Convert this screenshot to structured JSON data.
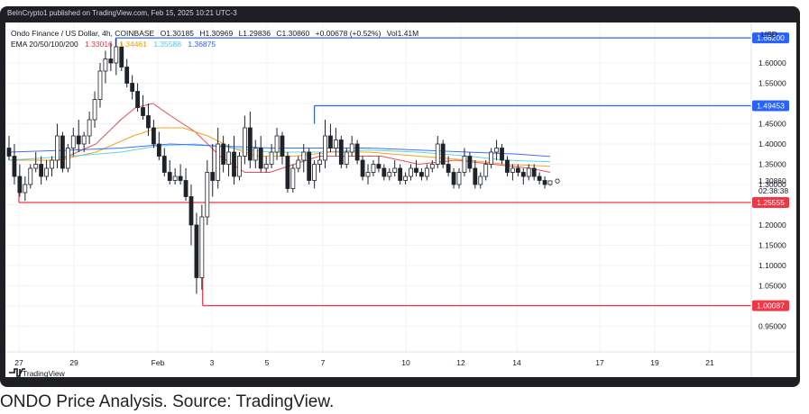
{
  "page": {
    "publisher_line": "BeInCrypto1 published on TradingView.com, Feb 15, 2025 10:21 UTC-3",
    "caption": "ONDO Price Analysis. Source: TradingView."
  },
  "header": {
    "symbol": "Ondo Finance / US Dollar, 4h, COINBASE",
    "open": "O1.30185",
    "high": "H1.30969",
    "low": "L1.29836",
    "close": "C1.30860",
    "change": "+0.00678 (+0.52%)",
    "volume": "Vol1.41M",
    "ema_label": "EMA 20/50/100/200",
    "ema_values": [
      "1.33016",
      "1.34461",
      "1.35588",
      "1.36875"
    ],
    "currency": "USD",
    "countdown": "02:38:38",
    "brand": "TradingView"
  },
  "colors": {
    "up": "#1f2329",
    "down": "#1f2329",
    "hollow": "#ffffff",
    "ema20": "#f23645",
    "ema50": "#ff9800",
    "ema100": "#4dd0e1",
    "ema200": "#2962ff",
    "level_blue": "#2962ff",
    "level_red": "#f23645"
  },
  "chart_data": {
    "type": "candlestick",
    "timeframe": "4h",
    "x_ticks": [
      "27",
      "29",
      "Feb",
      "3",
      "5",
      "7",
      "10",
      "12",
      "14",
      "17",
      "19",
      "21"
    ],
    "y_ticks": [
      "1.60000",
      "1.55000",
      "1.50000",
      "1.45000",
      "1.40000",
      "1.35000",
      "1.30000",
      "1.25000",
      "1.20000",
      "1.15000",
      "1.10000",
      "1.05000",
      "1.00000",
      "0.95000"
    ],
    "y_tick_values": [
      1.6,
      1.55,
      1.5,
      1.45,
      1.4,
      1.35,
      1.3,
      1.25,
      1.2,
      1.15,
      1.1,
      1.05,
      1.0,
      0.95
    ],
    "ylim": [
      0.93,
      1.72
    ],
    "x_range_days": [
      -0.6,
      25.9
    ],
    "last_price": 1.3086,
    "last_price_label": "1.30860",
    "levels": [
      {
        "label": "1.66200",
        "value": 1.662,
        "color": "blue",
        "start_day": 3.8
      },
      {
        "label": "1.49453",
        "value": 1.4945,
        "color": "blue",
        "start_day": 11.8
      },
      {
        "label": "1.25555",
        "value": 1.2556,
        "color": "red",
        "start_day": -0.1
      },
      {
        "label": "1.00087",
        "value": 1.0009,
        "color": "red",
        "start_day": 7.3
      }
    ],
    "candles_ohlc": [
      [
        1.39,
        1.42,
        1.36,
        1.37
      ],
      [
        1.37,
        1.4,
        1.3,
        1.32
      ],
      [
        1.32,
        1.35,
        1.27,
        1.28
      ],
      [
        1.28,
        1.32,
        1.26,
        1.3
      ],
      [
        1.3,
        1.35,
        1.29,
        1.34
      ],
      [
        1.34,
        1.38,
        1.33,
        1.35
      ],
      [
        1.35,
        1.37,
        1.3,
        1.32
      ],
      [
        1.32,
        1.36,
        1.31,
        1.34
      ],
      [
        1.34,
        1.37,
        1.32,
        1.36
      ],
      [
        1.36,
        1.45,
        1.34,
        1.42
      ],
      [
        1.42,
        1.43,
        1.33,
        1.34
      ],
      [
        1.34,
        1.4,
        1.33,
        1.39
      ],
      [
        1.39,
        1.44,
        1.37,
        1.42
      ],
      [
        1.42,
        1.46,
        1.38,
        1.4
      ],
      [
        1.4,
        1.43,
        1.38,
        1.42
      ],
      [
        1.42,
        1.48,
        1.4,
        1.46
      ],
      [
        1.46,
        1.53,
        1.44,
        1.51
      ],
      [
        1.51,
        1.6,
        1.49,
        1.58
      ],
      [
        1.58,
        1.63,
        1.55,
        1.61
      ],
      [
        1.61,
        1.65,
        1.58,
        1.6
      ],
      [
        1.6,
        1.66,
        1.57,
        1.64
      ],
      [
        1.64,
        1.65,
        1.58,
        1.59
      ],
      [
        1.59,
        1.61,
        1.54,
        1.55
      ],
      [
        1.55,
        1.57,
        1.51,
        1.53
      ],
      [
        1.53,
        1.55,
        1.48,
        1.49
      ],
      [
        1.49,
        1.52,
        1.46,
        1.47
      ],
      [
        1.47,
        1.5,
        1.42,
        1.44
      ],
      [
        1.44,
        1.46,
        1.39,
        1.4
      ],
      [
        1.4,
        1.43,
        1.36,
        1.37
      ],
      [
        1.37,
        1.39,
        1.32,
        1.33
      ],
      [
        1.33,
        1.36,
        1.3,
        1.31
      ],
      [
        1.31,
        1.34,
        1.3,
        1.32
      ],
      [
        1.32,
        1.35,
        1.3,
        1.31
      ],
      [
        1.31,
        1.34,
        1.26,
        1.27
      ],
      [
        1.27,
        1.3,
        1.15,
        1.2
      ],
      [
        1.2,
        1.23,
        1.03,
        1.07
      ],
      [
        1.07,
        1.25,
        1.04,
        1.22
      ],
      [
        1.22,
        1.36,
        1.2,
        1.33
      ],
      [
        1.33,
        1.4,
        1.27,
        1.31
      ],
      [
        1.31,
        1.44,
        1.29,
        1.4
      ],
      [
        1.4,
        1.42,
        1.33,
        1.35
      ],
      [
        1.35,
        1.4,
        1.32,
        1.38
      ],
      [
        1.38,
        1.42,
        1.3,
        1.32
      ],
      [
        1.32,
        1.38,
        1.31,
        1.37
      ],
      [
        1.37,
        1.47,
        1.35,
        1.44
      ],
      [
        1.44,
        1.48,
        1.34,
        1.36
      ],
      [
        1.36,
        1.41,
        1.34,
        1.39
      ],
      [
        1.39,
        1.42,
        1.33,
        1.34
      ],
      [
        1.34,
        1.37,
        1.33,
        1.35
      ],
      [
        1.35,
        1.4,
        1.34,
        1.38
      ],
      [
        1.38,
        1.44,
        1.36,
        1.42
      ],
      [
        1.42,
        1.43,
        1.35,
        1.37
      ],
      [
        1.37,
        1.38,
        1.28,
        1.29
      ],
      [
        1.29,
        1.35,
        1.28,
        1.34
      ],
      [
        1.34,
        1.37,
        1.33,
        1.36
      ],
      [
        1.36,
        1.4,
        1.33,
        1.38
      ],
      [
        1.38,
        1.39,
        1.3,
        1.31
      ],
      [
        1.31,
        1.36,
        1.29,
        1.35
      ],
      [
        1.35,
        1.38,
        1.33,
        1.36
      ],
      [
        1.36,
        1.46,
        1.34,
        1.42
      ],
      [
        1.42,
        1.45,
        1.38,
        1.39
      ],
      [
        1.39,
        1.44,
        1.37,
        1.41
      ],
      [
        1.41,
        1.42,
        1.34,
        1.35
      ],
      [
        1.35,
        1.39,
        1.34,
        1.38
      ],
      [
        1.38,
        1.42,
        1.37,
        1.4
      ],
      [
        1.4,
        1.41,
        1.35,
        1.36
      ],
      [
        1.36,
        1.37,
        1.31,
        1.32
      ],
      [
        1.32,
        1.35,
        1.3,
        1.33
      ],
      [
        1.33,
        1.36,
        1.32,
        1.35
      ],
      [
        1.35,
        1.37,
        1.33,
        1.34
      ],
      [
        1.34,
        1.35,
        1.31,
        1.32
      ],
      [
        1.32,
        1.34,
        1.31,
        1.33
      ],
      [
        1.33,
        1.36,
        1.32,
        1.34
      ],
      [
        1.34,
        1.35,
        1.3,
        1.31
      ],
      [
        1.31,
        1.33,
        1.3,
        1.32
      ],
      [
        1.32,
        1.35,
        1.31,
        1.34
      ],
      [
        1.34,
        1.36,
        1.32,
        1.33
      ],
      [
        1.33,
        1.34,
        1.31,
        1.32
      ],
      [
        1.32,
        1.35,
        1.31,
        1.34
      ],
      [
        1.34,
        1.36,
        1.33,
        1.35
      ],
      [
        1.35,
        1.42,
        1.34,
        1.4
      ],
      [
        1.4,
        1.41,
        1.34,
        1.35
      ],
      [
        1.35,
        1.37,
        1.32,
        1.33
      ],
      [
        1.33,
        1.34,
        1.29,
        1.3
      ],
      [
        1.3,
        1.34,
        1.29,
        1.33
      ],
      [
        1.33,
        1.39,
        1.32,
        1.37
      ],
      [
        1.37,
        1.38,
        1.33,
        1.34
      ],
      [
        1.34,
        1.36,
        1.29,
        1.3
      ],
      [
        1.3,
        1.33,
        1.29,
        1.32
      ],
      [
        1.32,
        1.36,
        1.31,
        1.35
      ],
      [
        1.35,
        1.39,
        1.34,
        1.38
      ],
      [
        1.38,
        1.41,
        1.36,
        1.39
      ],
      [
        1.39,
        1.4,
        1.35,
        1.36
      ],
      [
        1.36,
        1.37,
        1.32,
        1.33
      ],
      [
        1.33,
        1.35,
        1.31,
        1.34
      ],
      [
        1.34,
        1.35,
        1.32,
        1.33
      ],
      [
        1.33,
        1.34,
        1.3,
        1.32
      ],
      [
        1.32,
        1.35,
        1.31,
        1.34
      ],
      [
        1.34,
        1.35,
        1.31,
        1.32
      ],
      [
        1.32,
        1.33,
        1.3,
        1.31
      ],
      [
        1.31,
        1.32,
        1.29,
        1.3
      ],
      [
        1.3,
        1.31,
        1.297,
        1.309
      ]
    ],
    "ema_series": [
      {
        "name": "EMA 20",
        "color_key": "ema20",
        "points": [
          [
            -0.5,
            1.36
          ],
          [
            1.5,
            1.36
          ],
          [
            3.0,
            1.4
          ],
          [
            4.0,
            1.46
          ],
          [
            4.6,
            1.49
          ],
          [
            5.3,
            1.5
          ],
          [
            6.0,
            1.47
          ],
          [
            7.0,
            1.43
          ],
          [
            8.0,
            1.37
          ],
          [
            9.0,
            1.33
          ],
          [
            10.0,
            1.33
          ],
          [
            11.0,
            1.35
          ],
          [
            12.0,
            1.37
          ],
          [
            13.0,
            1.37
          ],
          [
            14.5,
            1.37
          ],
          [
            16.0,
            1.35
          ],
          [
            17.5,
            1.36
          ],
          [
            19.0,
            1.35
          ],
          [
            20.5,
            1.34
          ],
          [
            21.3,
            1.33
          ]
        ]
      },
      {
        "name": "EMA 50",
        "color_key": "ema50",
        "points": [
          [
            -0.5,
            1.36
          ],
          [
            1.5,
            1.36
          ],
          [
            3.0,
            1.38
          ],
          [
            4.5,
            1.42
          ],
          [
            5.5,
            1.44
          ],
          [
            6.5,
            1.44
          ],
          [
            7.5,
            1.42
          ],
          [
            8.5,
            1.39
          ],
          [
            9.5,
            1.37
          ],
          [
            11.0,
            1.37
          ],
          [
            12.5,
            1.38
          ],
          [
            14.0,
            1.38
          ],
          [
            16.0,
            1.37
          ],
          [
            18.0,
            1.36
          ],
          [
            19.5,
            1.35
          ],
          [
            21.3,
            1.345
          ]
        ]
      },
      {
        "name": "EMA 100",
        "color_key": "ema100",
        "points": [
          [
            -0.5,
            1.36
          ],
          [
            2.0,
            1.37
          ],
          [
            4.0,
            1.38
          ],
          [
            5.5,
            1.395
          ],
          [
            7.0,
            1.4
          ],
          [
            8.5,
            1.39
          ],
          [
            10.0,
            1.38
          ],
          [
            12.0,
            1.38
          ],
          [
            14.0,
            1.385
          ],
          [
            16.0,
            1.38
          ],
          [
            18.0,
            1.37
          ],
          [
            19.5,
            1.36
          ],
          [
            21.3,
            1.356
          ]
        ]
      },
      {
        "name": "EMA 200",
        "color_key": "ema200",
        "points": [
          [
            -0.5,
            1.38
          ],
          [
            2.0,
            1.385
          ],
          [
            4.0,
            1.39
          ],
          [
            6.0,
            1.4
          ],
          [
            8.0,
            1.395
          ],
          [
            10.0,
            1.39
          ],
          [
            12.0,
            1.39
          ],
          [
            14.0,
            1.39
          ],
          [
            16.0,
            1.385
          ],
          [
            18.0,
            1.38
          ],
          [
            20.0,
            1.375
          ],
          [
            21.3,
            1.369
          ]
        ]
      }
    ]
  }
}
